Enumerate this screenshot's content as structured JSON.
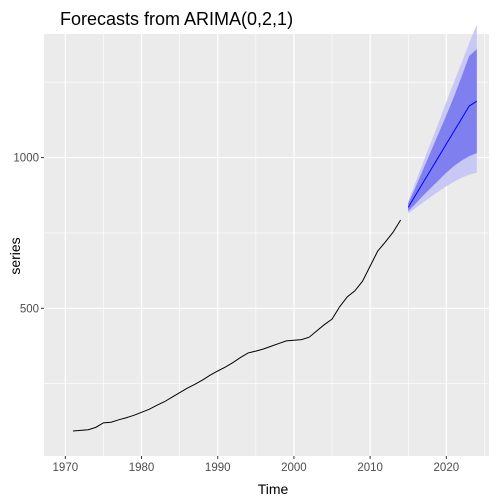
{
  "chart_data": {
    "type": "line",
    "title": "Forecasts from ARIMA(0,2,1)",
    "xlabel": "Time",
    "ylabel": "series",
    "xlim": [
      1967.2,
      2025.6
    ],
    "ylim": [
      10,
      1410
    ],
    "x_ticks": [
      1970,
      1980,
      1990,
      2000,
      2010,
      2020
    ],
    "y_ticks": [
      500,
      1000
    ],
    "grid": true,
    "colors": {
      "panel_bg": "#ebebeb",
      "grid_major": "#ffffff",
      "series_line": "#000000",
      "forecast_line": "#0000ff",
      "interval_80": "#7f7ff0",
      "interval_95": "#c8c8f4"
    },
    "series": [
      {
        "role": "observed",
        "x": [
          1971,
          1972,
          1973,
          1974,
          1975,
          1976,
          1977,
          1978,
          1979,
          1980,
          1981,
          1982,
          1983,
          1984,
          1985,
          1986,
          1987,
          1988,
          1989,
          1990,
          1991,
          1992,
          1993,
          1994,
          1995,
          1996,
          1997,
          1998,
          1999,
          2000,
          2001,
          2002,
          2003,
          2004,
          2005,
          2006,
          2007,
          2008,
          2009,
          2010,
          2011,
          2012,
          2013,
          2014
        ],
        "values": [
          93,
          95,
          97,
          105,
          120,
          122,
          130,
          137,
          145,
          155,
          165,
          178,
          190,
          205,
          220,
          235,
          248,
          262,
          278,
          292,
          305,
          320,
          337,
          352,
          358,
          365,
          374,
          383,
          392,
          394,
          396,
          404,
          425,
          446,
          464,
          505,
          538,
          558,
          590,
          640,
          690,
          720,
          752,
          793
        ]
      },
      {
        "role": "forecast",
        "x": [
          2015,
          2016,
          2017,
          2018,
          2019,
          2020,
          2021,
          2022,
          2023,
          2024
        ],
        "values": [
          835,
          877,
          919,
          961,
          1003,
          1045,
          1087,
          1129,
          1171,
          1187
        ]
      },
      {
        "role": "interval_80",
        "x": [
          2015,
          2016,
          2017,
          2018,
          2019,
          2020,
          2021,
          2022,
          2023,
          2024
        ],
        "lower": [
          822,
          848,
          875,
          900,
          925,
          950,
          972,
          990,
          1005,
          1015
        ],
        "upper": [
          848,
          904,
          963,
          1022,
          1081,
          1140,
          1202,
          1268,
          1337,
          1360
        ]
      },
      {
        "role": "interval_95",
        "x": [
          2015,
          2016,
          2017,
          2018,
          2019,
          2020,
          2021,
          2022,
          2023,
          2024
        ],
        "lower": [
          815,
          833,
          852,
          870,
          888,
          905,
          920,
          933,
          943,
          950
        ],
        "upper": [
          855,
          921,
          987,
          1052,
          1117,
          1185,
          1250,
          1315,
          1380,
          1440
        ]
      }
    ]
  }
}
